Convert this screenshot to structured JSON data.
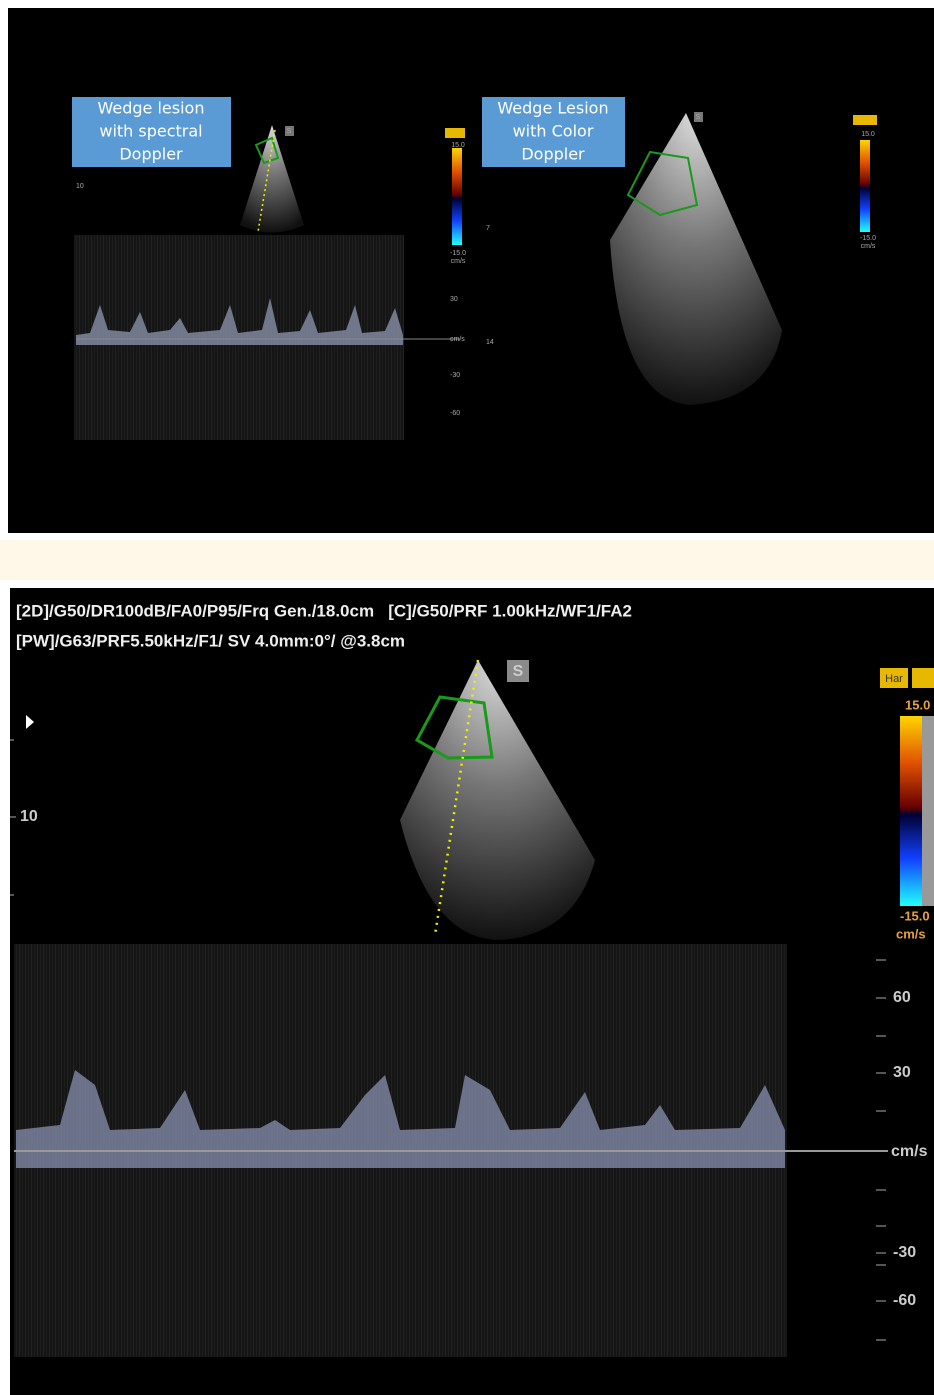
{
  "top_panel": {
    "label_left": [
      "Wedge lesion",
      "with spectral",
      "Doppler"
    ],
    "label_right": [
      "Wedge Lesion",
      "with Color",
      "Doppler"
    ],
    "sector_marker_left": "S",
    "sector_marker_right": "S",
    "depth_label": "10",
    "depth_marks_right": [
      "7",
      "14"
    ],
    "velocity_scale": [
      "30",
      "cm/s",
      "-30",
      "-60"
    ],
    "color_scale_left": [
      "15.0",
      "-15.0",
      "cm/s"
    ],
    "color_scale_right": [
      "15.0",
      "-15.0",
      "cm/s"
    ]
  },
  "bottom_panel": {
    "settings": [
      "[2D]/G50/DR100dB/FA0/P95/Frq Gen./18.0cm   [C]/G50/PRF 1.00kHz/WF1/FA2",
      "[PW]/G63/PRF5.50kHz/F1/ SV 4.0mm:0°/ @3.8cm"
    ],
    "sector_marker": "S",
    "depth_label": "10",
    "mode_tag": "Har",
    "velocity_scale": [
      "60",
      "30",
      "cm/s",
      "-30",
      "-60"
    ],
    "color_scale": [
      "15.0",
      "-15.0",
      "cm/s"
    ]
  }
}
